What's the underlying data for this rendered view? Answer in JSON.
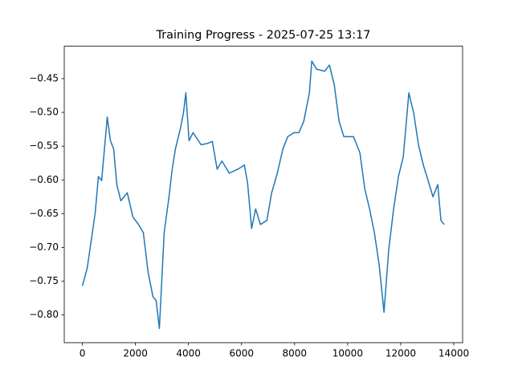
{
  "chart_data": {
    "type": "line",
    "title": "Training Progress - 2025-07-25 13:17",
    "x": [
      0,
      181,
      333,
      484,
      605,
      726,
      847,
      937,
      1058,
      1179,
      1300,
      1451,
      1693,
      1905,
      2117,
      2298,
      2479,
      2661,
      2782,
      2903,
      3084,
      3266,
      3387,
      3508,
      3689,
      3810,
      3901,
      4022,
      4173,
      4475,
      4717,
      4899,
      5080,
      5262,
      5534,
      5866,
      6108,
      6229,
      6380,
      6531,
      6713,
      6955,
      7136,
      7348,
      7560,
      7741,
      7983,
      8164,
      8346,
      8558,
      8648,
      8830,
      9132,
      9313,
      9495,
      9676,
      9858,
      10221,
      10463,
      10644,
      10826,
      11007,
      11188,
      11370,
      11551,
      11733,
      11914,
      12096,
      12307,
      12489,
      12670,
      12852,
      13033,
      13215,
      13396,
      13517,
      13638
    ],
    "series": [
      {
        "color": "#1f77b4",
        "values": [
          -0.757,
          -0.731,
          -0.69,
          -0.649,
          -0.595,
          -0.601,
          -0.548,
          -0.507,
          -0.542,
          -0.554,
          -0.607,
          -0.631,
          -0.619,
          -0.655,
          -0.666,
          -0.678,
          -0.737,
          -0.773,
          -0.779,
          -0.82,
          -0.678,
          -0.625,
          -0.584,
          -0.554,
          -0.525,
          -0.501,
          -0.471,
          -0.542,
          -0.53,
          -0.548,
          -0.546,
          -0.543,
          -0.584,
          -0.572,
          -0.59,
          -0.584,
          -0.578,
          -0.605,
          -0.672,
          -0.643,
          -0.666,
          -0.66,
          -0.619,
          -0.59,
          -0.554,
          -0.536,
          -0.53,
          -0.53,
          -0.513,
          -0.471,
          -0.424,
          -0.436,
          -0.439,
          -0.43,
          -0.459,
          -0.513,
          -0.536,
          -0.536,
          -0.56,
          -0.613,
          -0.643,
          -0.678,
          -0.726,
          -0.796,
          -0.702,
          -0.643,
          -0.595,
          -0.566,
          -0.471,
          -0.501,
          -0.548,
          -0.578,
          -0.601,
          -0.625,
          -0.607,
          -0.66,
          -0.666
        ]
      }
    ],
    "xlim": [
      -682.5,
      14332.5
    ],
    "ylim": [
      -0.841,
      -0.402
    ],
    "xticks": [
      0,
      2000,
      4000,
      6000,
      8000,
      10000,
      12000,
      14000
    ],
    "yticks": [
      {
        "value": -0.8,
        "label": "−0.80"
      },
      {
        "value": -0.75,
        "label": "−0.75"
      },
      {
        "value": -0.7,
        "label": "−0.70"
      },
      {
        "value": -0.65,
        "label": "−0.65"
      },
      {
        "value": -0.6,
        "label": "−0.60"
      },
      {
        "value": -0.55,
        "label": "−0.55"
      },
      {
        "value": -0.5,
        "label": "−0.50"
      },
      {
        "value": -0.45,
        "label": "−0.45"
      }
    ]
  }
}
